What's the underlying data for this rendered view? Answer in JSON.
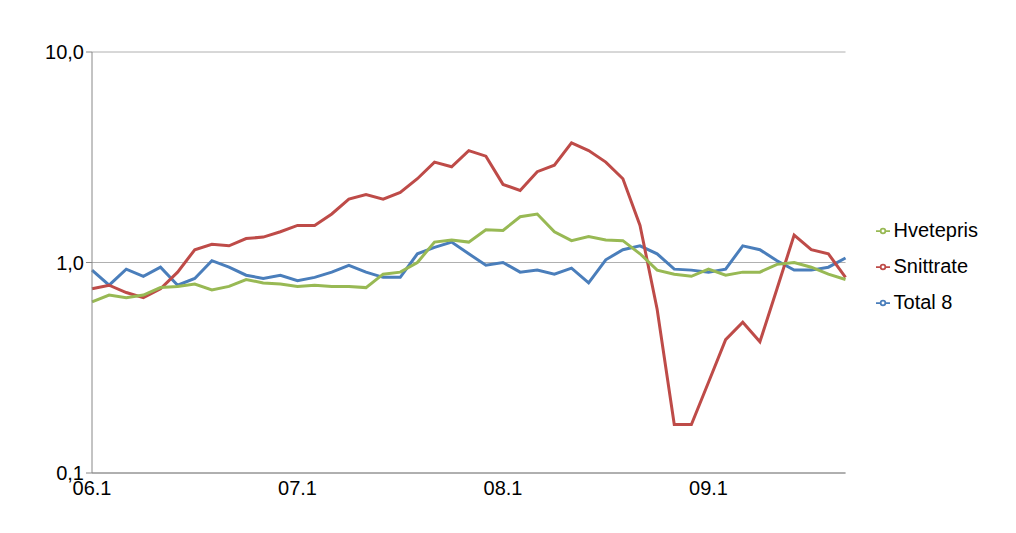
{
  "chart_data": {
    "type": "line",
    "log": "y",
    "grid": true,
    "legend": "right",
    "categories": [
      "06.1",
      null,
      null,
      null,
      null,
      null,
      null,
      null,
      null,
      null,
      null,
      null,
      "07.1",
      null,
      null,
      null,
      null,
      null,
      null,
      null,
      null,
      null,
      null,
      null,
      "08.1",
      null,
      null,
      null,
      null,
      null,
      null,
      null,
      null,
      null,
      null,
      null,
      "09.1",
      null,
      null,
      null,
      null,
      null,
      null,
      null,
      null
    ],
    "ylim": [
      0.1,
      10
    ],
    "yticks": [
      {
        "value": 0.1,
        "label": "0,1"
      },
      {
        "value": 1,
        "label": "1,0"
      },
      {
        "value": 10,
        "label": "10,0"
      }
    ],
    "series": [
      {
        "name": "Total 8",
        "color": "#4a7ebb",
        "values": [
          0.92,
          0.78,
          0.93,
          0.86,
          0.95,
          0.78,
          0.84,
          1.02,
          0.95,
          0.87,
          0.84,
          0.87,
          0.82,
          0.85,
          0.9,
          0.97,
          0.9,
          0.85,
          0.85,
          1.1,
          1.18,
          1.25,
          1.1,
          0.97,
          1.0,
          0.9,
          0.92,
          0.88,
          0.94,
          0.8,
          1.03,
          1.15,
          1.2,
          1.1,
          0.93,
          0.92,
          0.9,
          0.93,
          1.2,
          1.15,
          1.02,
          0.92,
          0.92,
          0.95,
          1.05
        ]
      },
      {
        "name": "Snittrate",
        "color": "#be4b48",
        "values": [
          0.75,
          0.78,
          0.72,
          0.68,
          0.75,
          0.9,
          1.15,
          1.22,
          1.2,
          1.3,
          1.32,
          1.4,
          1.5,
          1.5,
          1.7,
          2.0,
          2.1,
          2.0,
          2.15,
          2.5,
          3.0,
          2.85,
          3.4,
          3.2,
          2.35,
          2.2,
          2.7,
          2.9,
          3.7,
          3.4,
          3.0,
          2.5,
          1.5,
          0.6,
          0.17,
          0.17,
          0.27,
          0.43,
          0.52,
          0.42,
          0.75,
          1.35,
          1.15,
          1.1,
          0.85
        ]
      },
      {
        "name": "Hvetepris",
        "color": "#98b954",
        "values": [
          0.65,
          0.7,
          0.68,
          0.7,
          0.76,
          0.77,
          0.79,
          0.74,
          0.77,
          0.83,
          0.8,
          0.79,
          0.77,
          0.78,
          0.77,
          0.77,
          0.76,
          0.88,
          0.9,
          1.0,
          1.25,
          1.28,
          1.25,
          1.43,
          1.42,
          1.65,
          1.7,
          1.4,
          1.27,
          1.33,
          1.28,
          1.27,
          1.1,
          0.92,
          0.88,
          0.86,
          0.93,
          0.87,
          0.9,
          0.9,
          0.98,
          1.0,
          0.95,
          0.88,
          0.83
        ]
      }
    ]
  }
}
